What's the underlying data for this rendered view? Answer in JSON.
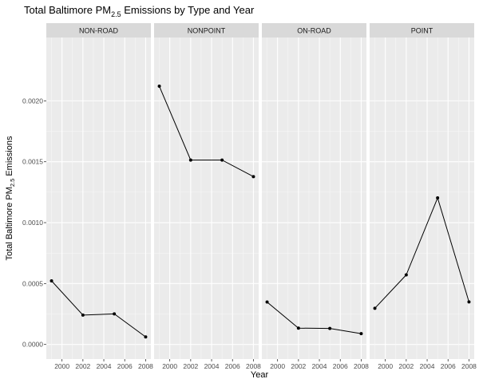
{
  "chart_data": {
    "type": "line",
    "title": {
      "prefix": "Total Baltimore  PM",
      "subscript": "2.5",
      "suffix": " Emissions by Type and Year"
    },
    "xlabel": "Year",
    "ylabel": {
      "prefix": "Total Baltimore PM",
      "subscript": "2.5",
      "suffix": " Emissions"
    },
    "x_ticks": [
      "2000",
      "2002",
      "2004",
      "2006",
      "2008"
    ],
    "y_ticks": [
      "0.0000",
      "0.0005",
      "0.0010",
      "0.0015",
      "0.0020"
    ],
    "xlim": [
      1998.5,
      2008.5
    ],
    "ylim": [
      -0.00012,
      0.00252
    ],
    "grid": true,
    "facets": [
      {
        "name": "NON-ROAD",
        "x": [
          1999,
          2002,
          2005,
          2008
        ],
        "y": [
          0.000522,
          0.000241,
          0.000251,
          6.2e-05
        ]
      },
      {
        "name": "NONPOINT",
        "x": [
          1999,
          2002,
          2005,
          2008
        ],
        "y": [
          0.00212,
          0.001514,
          0.001514,
          0.001378
        ]
      },
      {
        "name": "ON-ROAD",
        "x": [
          1999,
          2002,
          2005,
          2008
        ],
        "y": [
          0.000348,
          0.000134,
          0.000131,
          8.9e-05
        ]
      },
      {
        "name": "POINT",
        "x": [
          1999,
          2002,
          2005,
          2008
        ],
        "y": [
          0.000297,
          0.000571,
          0.001203,
          0.000349
        ]
      }
    ]
  }
}
